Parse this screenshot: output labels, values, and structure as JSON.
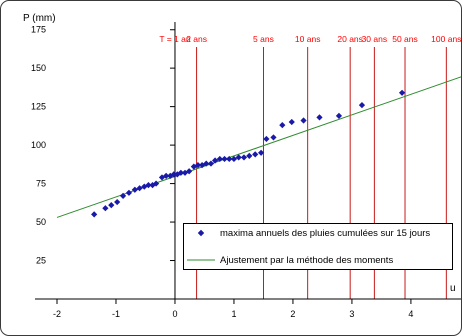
{
  "chart_data": {
    "type": "scatter",
    "title": "",
    "ylabel": "P (mm)",
    "xlabel": "u",
    "xlim": [
      -2,
      4.9
    ],
    "ylim": [
      0,
      180
    ],
    "x_ticks": [
      -2,
      -1,
      0,
      1,
      2,
      3,
      4
    ],
    "y_ticks": [
      25,
      50,
      75,
      100,
      125,
      150,
      175
    ],
    "grid": false,
    "legend_position": "bottom-right",
    "colors": {
      "points": "#1a1aa8",
      "fit": "#2e8b2e",
      "return_lines": "#c00000",
      "return_labels": "#ff0000"
    },
    "series": [
      {
        "name": "maxima annuels des pluies cumulées sur 15 jours",
        "type": "scatter",
        "points": [
          [
            -1.37,
            55
          ],
          [
            -1.18,
            59
          ],
          [
            -1.08,
            61
          ],
          [
            -0.98,
            63
          ],
          [
            -0.88,
            67
          ],
          [
            -0.78,
            69
          ],
          [
            -0.68,
            71
          ],
          [
            -0.6,
            72
          ],
          [
            -0.52,
            73
          ],
          [
            -0.45,
            74
          ],
          [
            -0.38,
            74
          ],
          [
            -0.32,
            75
          ],
          [
            -0.22,
            79
          ],
          [
            -0.15,
            80
          ],
          [
            -0.08,
            80
          ],
          [
            -0.02,
            81
          ],
          [
            0.04,
            81
          ],
          [
            0.1,
            82
          ],
          [
            0.17,
            82
          ],
          [
            0.24,
            83
          ],
          [
            0.32,
            86
          ],
          [
            0.39,
            87
          ],
          [
            0.46,
            87
          ],
          [
            0.53,
            88
          ],
          [
            0.61,
            88
          ],
          [
            0.68,
            90
          ],
          [
            0.76,
            91
          ],
          [
            0.84,
            91
          ],
          [
            0.92,
            91
          ],
          [
            1.0,
            91
          ],
          [
            1.08,
            92
          ],
          [
            1.17,
            92
          ],
          [
            1.26,
            93
          ],
          [
            1.36,
            94
          ],
          [
            1.46,
            95
          ],
          [
            1.55,
            104
          ],
          [
            1.67,
            105
          ],
          [
            1.82,
            113
          ],
          [
            1.98,
            115
          ],
          [
            2.18,
            116
          ],
          [
            2.45,
            118
          ],
          [
            2.78,
            119
          ],
          [
            3.17,
            126
          ],
          [
            3.85,
            134
          ]
        ]
      },
      {
        "name": "Ajustement par la méthode des moments",
        "type": "line",
        "points": [
          [
            -2,
            53
          ],
          [
            4.9,
            145
          ]
        ]
      }
    ],
    "return_periods": [
      {
        "label": "T = 1 an",
        "u": 0.0
      },
      {
        "label": "2 ans",
        "u": 0.367
      },
      {
        "label": "5 ans",
        "u": 1.5
      },
      {
        "label": "10 ans",
        "u": 2.25
      },
      {
        "label": "20 ans",
        "u": 2.97
      },
      {
        "label": "30 ans",
        "u": 3.38
      },
      {
        "label": "50 ans",
        "u": 3.9
      },
      {
        "label": "100 ans",
        "u": 4.6
      }
    ]
  }
}
